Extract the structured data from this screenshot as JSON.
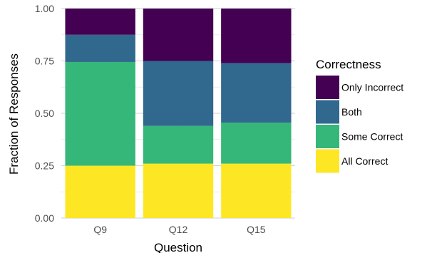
{
  "chart_data": {
    "type": "bar",
    "stacked": true,
    "categories": [
      "Q9",
      "Q12",
      "Q15"
    ],
    "series": [
      {
        "name": "All Correct",
        "color": "#FDE725",
        "values": [
          0.25,
          0.26,
          0.26
        ]
      },
      {
        "name": "Some Correct",
        "color": "#35B779",
        "values": [
          0.495,
          0.18,
          0.195
        ]
      },
      {
        "name": "Both",
        "color": "#31688E",
        "values": [
          0.13,
          0.31,
          0.285
        ]
      },
      {
        "name": "Only Incorrect",
        "color": "#440154",
        "values": [
          0.125,
          0.25,
          0.26
        ]
      }
    ],
    "xlabel": "Question",
    "ylabel": "Fraction of Responses",
    "ylim": [
      0,
      1
    ],
    "yticks": [
      "0.00",
      "0.25",
      "0.50",
      "0.75",
      "1.00"
    ],
    "grid": true,
    "legend": {
      "title": "Correctness",
      "placement": "right",
      "order": [
        "Only Incorrect",
        "Both",
        "Some Correct",
        "All Correct"
      ]
    }
  }
}
